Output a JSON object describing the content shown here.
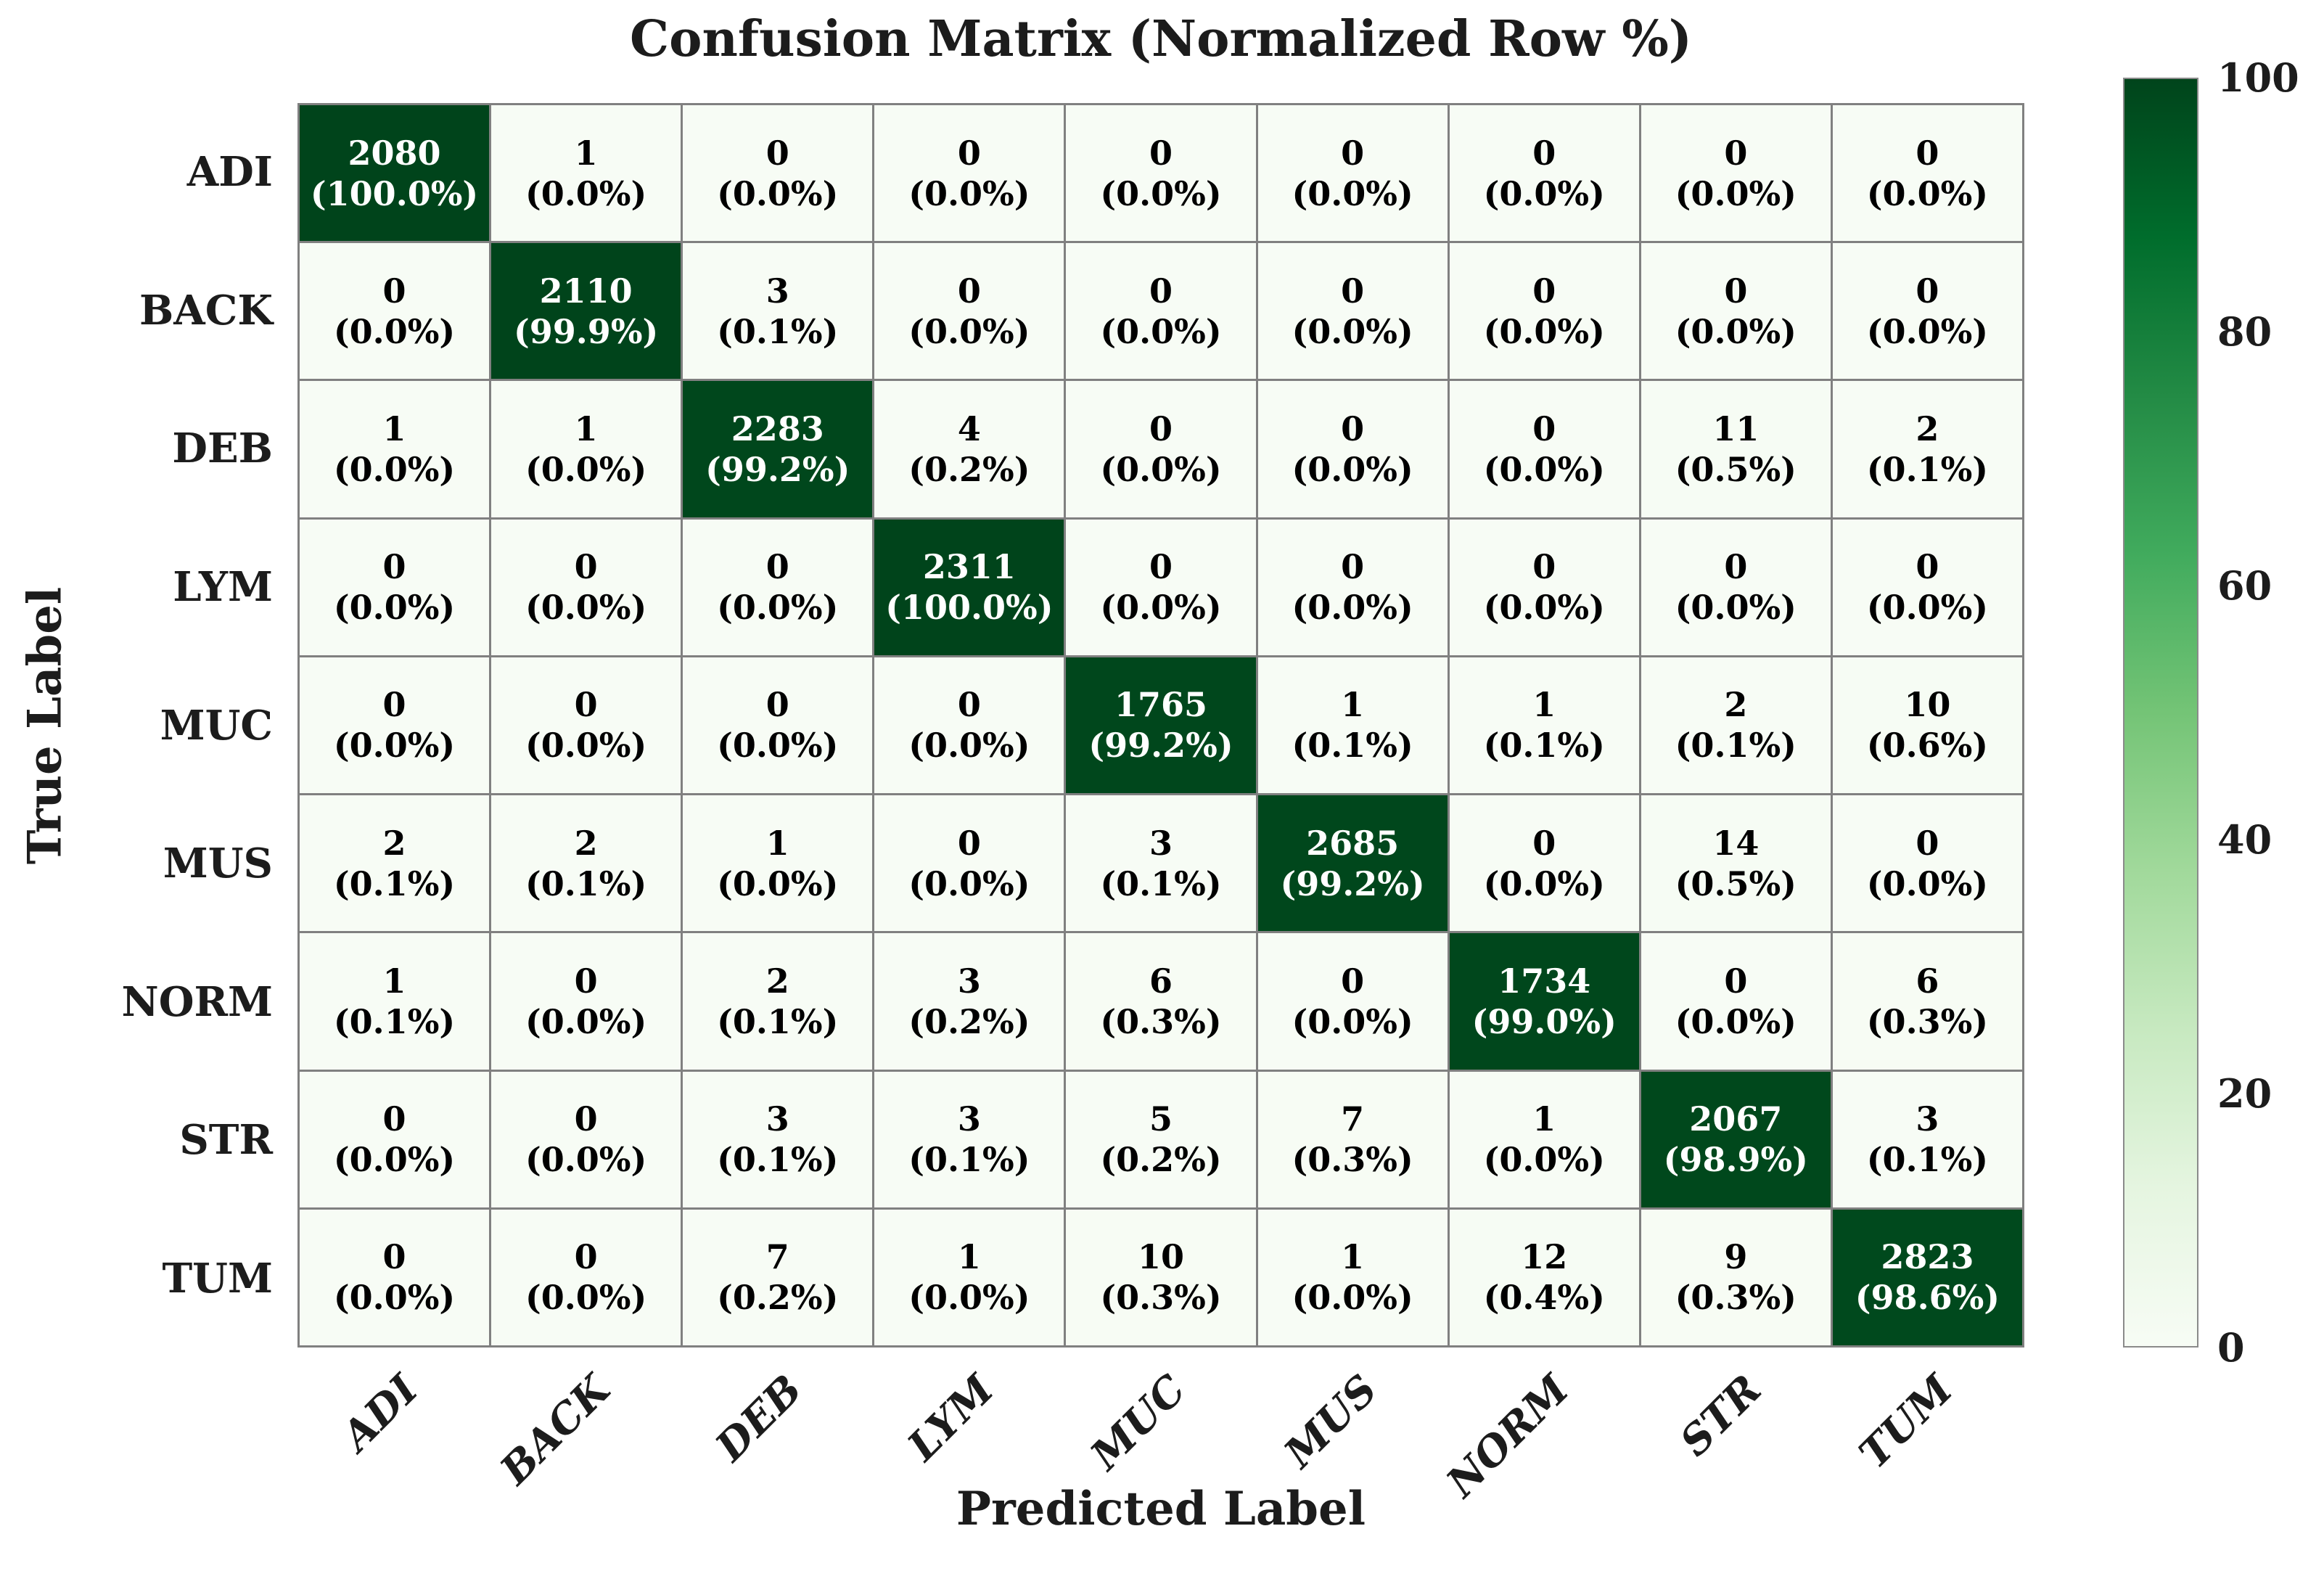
{
  "figure": {
    "background": "#ffffff"
  },
  "chart_data": {
    "type": "heatmap",
    "title": "Confusion Matrix (Normalized Row %)",
    "xlabel": "Predicted Label",
    "ylabel": "True Label",
    "x_tick_labels": [
      "ADI",
      "BACK",
      "DEB",
      "LYM",
      "MUC",
      "MUS",
      "NORM",
      "STR",
      "TUM"
    ],
    "y_tick_labels": [
      "ADI",
      "BACK",
      "DEB",
      "LYM",
      "MUC",
      "MUS",
      "NORM",
      "STR",
      "TUM"
    ],
    "cell_value_format": "count newline (row_percent%)",
    "rows": [
      {
        "true_label": "ADI",
        "counts": [
          2080,
          1,
          0,
          0,
          0,
          0,
          0,
          0,
          0
        ],
        "row_percents": [
          100.0,
          0.0,
          0.0,
          0.0,
          0.0,
          0.0,
          0.0,
          0.0,
          0.0
        ]
      },
      {
        "true_label": "BACK",
        "counts": [
          0,
          2110,
          3,
          0,
          0,
          0,
          0,
          0,
          0
        ],
        "row_percents": [
          0.0,
          99.9,
          0.1,
          0.0,
          0.0,
          0.0,
          0.0,
          0.0,
          0.0
        ]
      },
      {
        "true_label": "DEB",
        "counts": [
          1,
          1,
          2283,
          4,
          0,
          0,
          0,
          11,
          2
        ],
        "row_percents": [
          0.0,
          0.0,
          99.2,
          0.2,
          0.0,
          0.0,
          0.0,
          0.5,
          0.1
        ]
      },
      {
        "true_label": "LYM",
        "counts": [
          0,
          0,
          0,
          2311,
          0,
          0,
          0,
          0,
          0
        ],
        "row_percents": [
          0.0,
          0.0,
          0.0,
          100.0,
          0.0,
          0.0,
          0.0,
          0.0,
          0.0
        ]
      },
      {
        "true_label": "MUC",
        "counts": [
          0,
          0,
          0,
          0,
          1765,
          1,
          1,
          2,
          10
        ],
        "row_percents": [
          0.0,
          0.0,
          0.0,
          0.0,
          99.2,
          0.1,
          0.1,
          0.1,
          0.6
        ]
      },
      {
        "true_label": "MUS",
        "counts": [
          2,
          2,
          1,
          0,
          3,
          2685,
          0,
          14,
          0
        ],
        "row_percents": [
          0.1,
          0.1,
          0.0,
          0.0,
          0.1,
          99.2,
          0.0,
          0.5,
          0.0
        ]
      },
      {
        "true_label": "NORM",
        "counts": [
          1,
          0,
          2,
          3,
          6,
          0,
          1734,
          0,
          6
        ],
        "row_percents": [
          0.1,
          0.0,
          0.1,
          0.2,
          0.3,
          0.0,
          99.0,
          0.0,
          0.3
        ]
      },
      {
        "true_label": "STR",
        "counts": [
          0,
          0,
          3,
          3,
          5,
          7,
          1,
          2067,
          3
        ],
        "row_percents": [
          0.0,
          0.0,
          0.1,
          0.1,
          0.2,
          0.3,
          0.0,
          98.9,
          0.1
        ]
      },
      {
        "true_label": "TUM",
        "counts": [
          0,
          0,
          7,
          1,
          10,
          1,
          12,
          9,
          2823
        ],
        "row_percents": [
          0.0,
          0.0,
          0.2,
          0.0,
          0.3,
          0.0,
          0.4,
          0.3,
          98.6
        ]
      }
    ],
    "colorbar": {
      "min": 0,
      "max": 100,
      "tick_values": [
        100,
        80,
        60,
        40,
        20,
        0
      ],
      "tick_labels": [
        "100",
        "80",
        "60",
        "40",
        "20",
        "0"
      ],
      "position": "right"
    },
    "colormap_name": "Greens",
    "colormap_stops": [
      "#f7fcf5",
      "#e5f5e0",
      "#c7e9c0",
      "#a1d99b",
      "#74c476",
      "#41ab5d",
      "#238b45",
      "#006d2c",
      "#00441b"
    ],
    "grid_line_color": "#808080",
    "annotation_color_dark_cells": "#ffffff",
    "annotation_color_light_cells": "#000000",
    "legend": "none",
    "grid": "cell-borders"
  }
}
